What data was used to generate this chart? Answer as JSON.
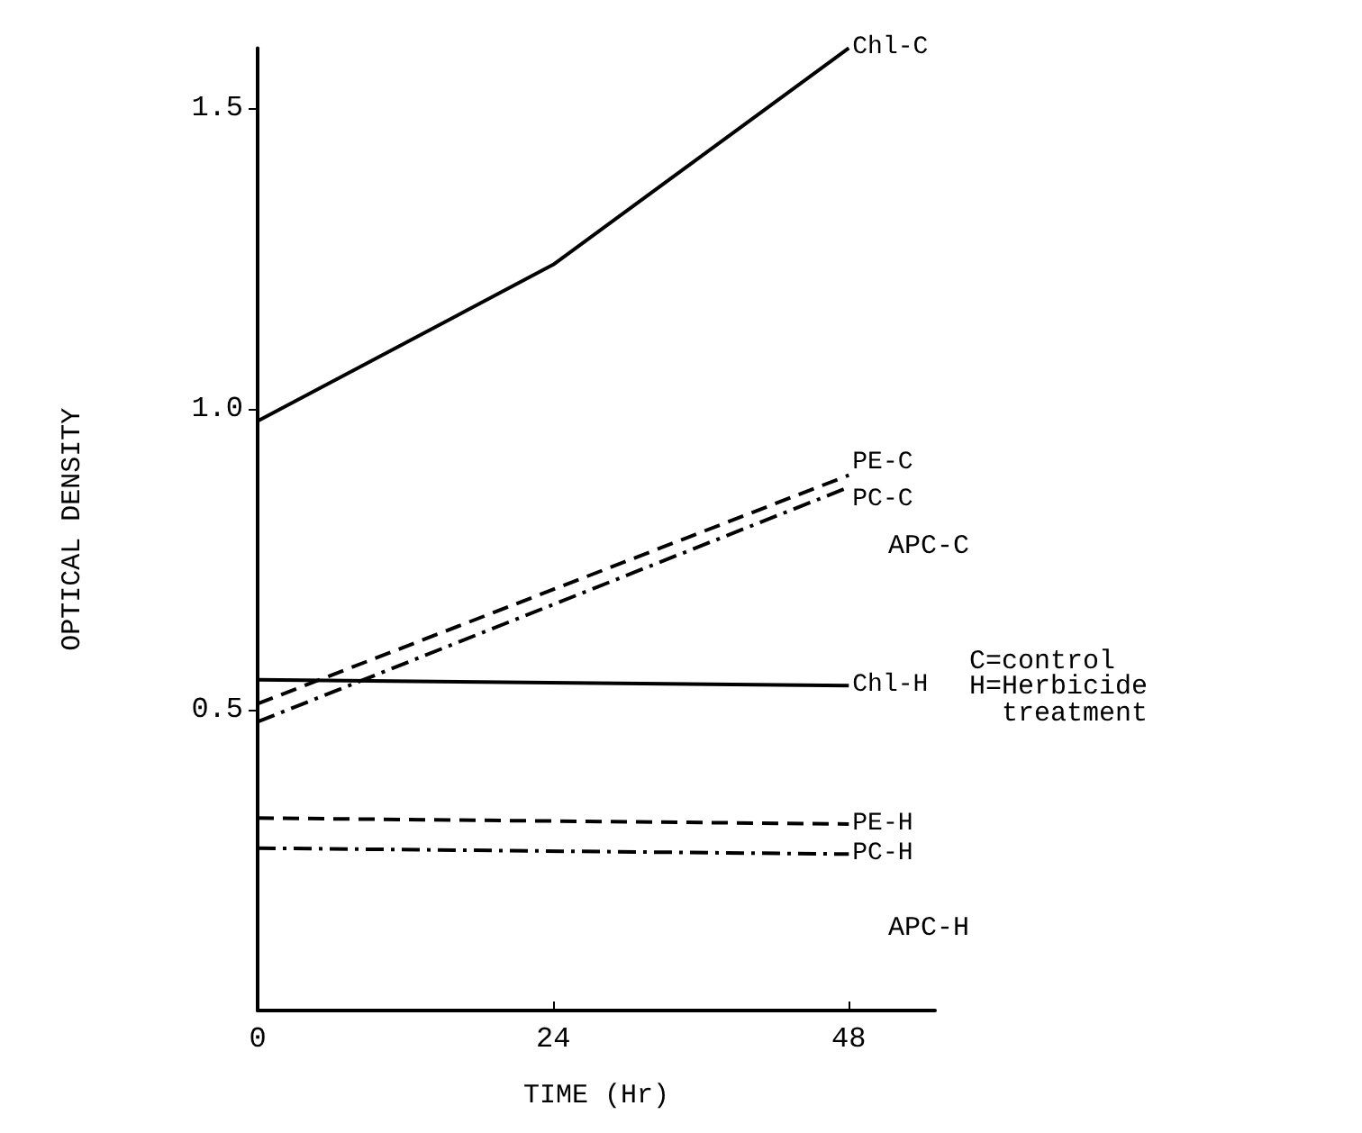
{
  "chart_data": {
    "type": "line",
    "xlabel": "TIME (Hr)",
    "ylabel": "OPTICAL DENSITY",
    "xlim": [
      0,
      55
    ],
    "xticks": [
      0,
      24,
      48
    ],
    "ylim": [
      0,
      1.6
    ],
    "yticks": [
      {
        "value": 0.5,
        "label": "0.5"
      },
      {
        "value": 1,
        "label": "1.0"
      },
      {
        "value": 1.5,
        "label": "1.5"
      }
    ],
    "grid": false,
    "legend": false,
    "marker": "none",
    "series": [
      {
        "name": "Chl-C",
        "color": "#000000",
        "line_style": "solid",
        "x": [
          0,
          24,
          48
        ],
        "values": [
          0.98,
          1.24,
          1.6
        ]
      },
      {
        "name": "PE-C",
        "color": "#000000",
        "line_style": "dashed",
        "x": [
          0,
          48
        ],
        "values": [
          0.51,
          0.89
        ]
      },
      {
        "name": "PC-C",
        "color": "#000000",
        "line_style": "dashdot",
        "x": [
          0,
          48
        ],
        "values": [
          0.48,
          0.87
        ]
      },
      {
        "name": "Chl-H",
        "color": "#000000",
        "line_style": "solid",
        "x": [
          0,
          48
        ],
        "values": [
          0.55,
          0.54
        ]
      },
      {
        "name": "PE-H",
        "color": "#000000",
        "line_style": "dashed",
        "x": [
          0,
          48
        ],
        "values": [
          0.32,
          0.31
        ]
      },
      {
        "name": "PC-H",
        "color": "#000000",
        "line_style": "dashdot",
        "x": [
          0,
          48
        ],
        "values": [
          0.27,
          0.26
        ]
      }
    ],
    "annotations": [
      "APC-C",
      "APC-H",
      "C=control",
      "H=Herbicide\n  treatment"
    ]
  }
}
